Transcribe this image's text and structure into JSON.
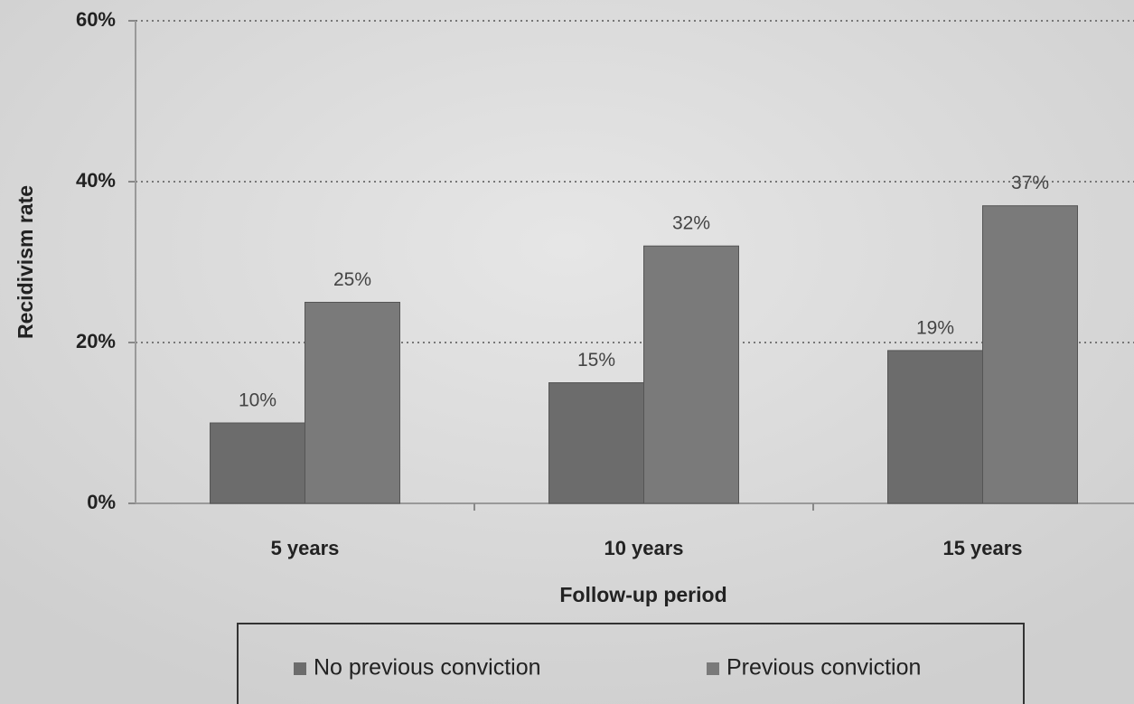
{
  "chart_data": {
    "type": "bar",
    "categories": [
      "5 years",
      "10 years",
      "15 years"
    ],
    "series": [
      {
        "name": "No previous conviction",
        "color": "#6c6c6c",
        "values": [
          10,
          15,
          19
        ],
        "value_labels": [
          "10%",
          "15%",
          "19%"
        ]
      },
      {
        "name": "Previous conviction",
        "color": "#7a7a7a",
        "values": [
          25,
          32,
          37
        ],
        "value_labels": [
          "25%",
          "32%",
          "37%"
        ]
      }
    ],
    "ylim": [
      0,
      60
    ],
    "yticks": [
      {
        "value": 0,
        "label": "0%"
      },
      {
        "value": 20,
        "label": "20%"
      },
      {
        "value": 40,
        "label": "40%"
      },
      {
        "value": 60,
        "label": "60%"
      }
    ],
    "y_label": "Recidivism rate",
    "x_label": "Follow-up period",
    "grid": true,
    "legend": "bottom"
  }
}
